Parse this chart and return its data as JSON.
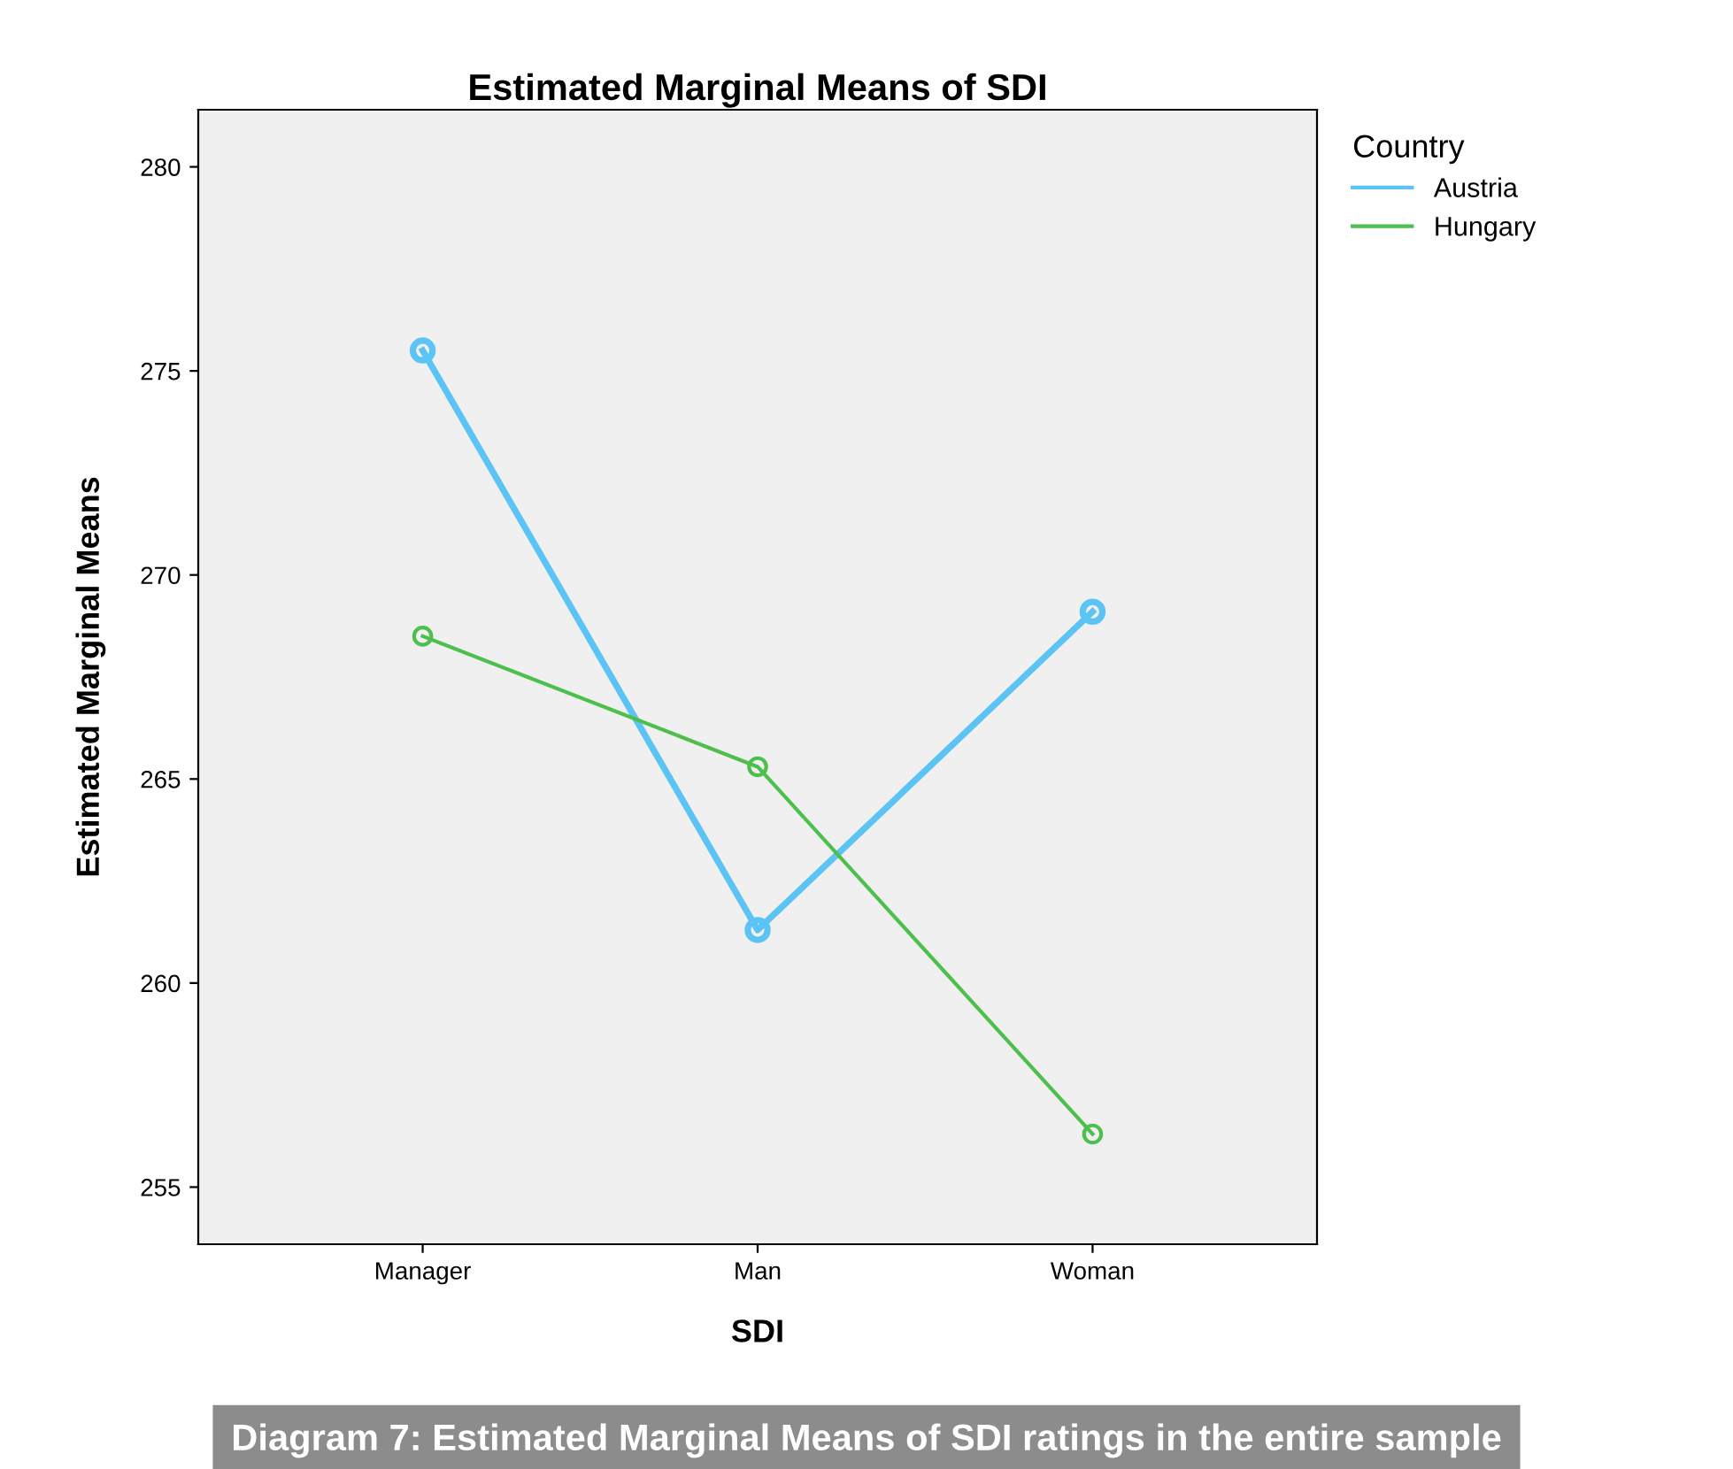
{
  "chart_data": {
    "type": "line",
    "title": "Estimated Marginal Means of SDI",
    "xlabel": "SDI",
    "ylabel": "Estimated Marginal Means",
    "legend_title": "Country",
    "categories": [
      "Manager",
      "Man",
      "Woman"
    ],
    "series": [
      {
        "name": "Austria",
        "color": "#5bc4f5",
        "values": [
          275.5,
          261.3,
          269.1
        ]
      },
      {
        "name": "Hungary",
        "color": "#4cbf4c",
        "values": [
          268.5,
          265.3,
          256.3
        ]
      }
    ],
    "ylim": [
      253.6,
      281.4
    ],
    "yticks": [
      255,
      260,
      265,
      270,
      275,
      280
    ],
    "grid": false,
    "legend": "right",
    "marker": "circle",
    "line_style": "solid",
    "annotations": [
      "Diagram 7: Estimated Marginal Means of SDI ratings in the entire sample"
    ]
  }
}
